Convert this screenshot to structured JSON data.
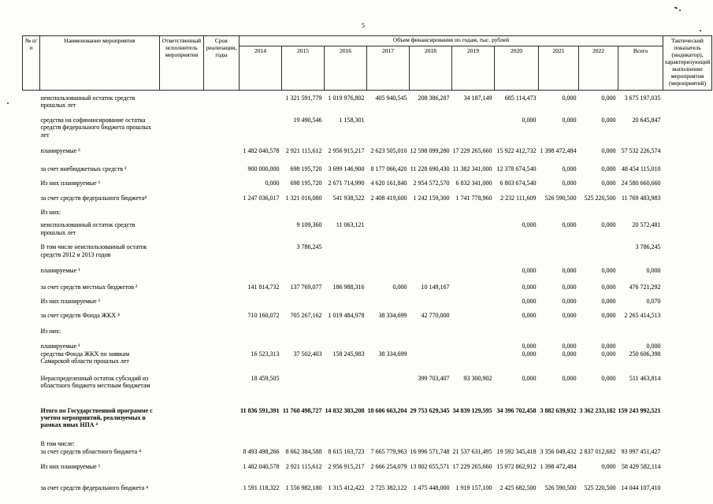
{
  "page": {
    "number": "5"
  },
  "table": {
    "header": {
      "col_num": "№ п/п",
      "col_name": "Наименование мероприятия",
      "col_executor": "Ответственный исполнитель мероприятия",
      "col_term": "Срок реализации, годы",
      "col_financing": "Объем финансирования по годам, тыс. рублей",
      "years": [
        "2014",
        "2015",
        "2016",
        "2017",
        "2018",
        "2019",
        "2020",
        "2021",
        "2022",
        "Всего"
      ],
      "col_indicator": "Тактический показатель (индикатор), характеризующий выполнение мероприятия (мероприятий)"
    },
    "rows": [
      {
        "label": "неиспользованный остаток средств прошлых лет",
        "bold": false,
        "values": [
          "",
          "1 321 591,779",
          "1 019 976,802",
          "405 940,545",
          "208 386,287",
          "34 187,149",
          "685 114,473",
          "0,000",
          "0,000",
          "3 675 197,035"
        ]
      },
      {
        "label": "средства на софинансирование остатка средств федерального бюджета прошлых лет",
        "bold": false,
        "values": [
          "",
          "19 490,546",
          "1 158,301",
          "",
          "",
          "",
          "0,000",
          "0,000",
          "0,000",
          "20 645,847"
        ]
      },
      {
        "label": "планируемые ³",
        "bold": false,
        "values": [
          "1 482 040,578",
          "2 921 115,612",
          "2 956 915,217",
          "2 623 505,010",
          "12 598 099,280",
          "17 229 265,660",
          "15 922 412,732",
          "1 398 472,484",
          "0,000",
          "57 532 226,574"
        ]
      },
      {
        "label": "за счет внебюджетных средств ²",
        "bold": false,
        "values": [
          "900 000,000",
          "698 195,720",
          "3 699 146,900",
          "8 177 066,420",
          "11 228 690,430",
          "11 382 341,000",
          "12 378 674,540",
          "0,000",
          "0,000",
          "48 454 115,010"
        ]
      },
      {
        "label": "Из них планируемые ¹",
        "bold": false,
        "values": [
          "0,000",
          "698 195,720",
          "2 671 714,990",
          "4 620 161,840",
          "2 954 572,570",
          "6 832 341,000",
          "6 803 674,540",
          "0,000",
          "0,000",
          "24 580 660,660"
        ]
      },
      {
        "label": "за счет средств федерального бюджета⁴",
        "bold": false,
        "values": [
          "1 247 036,017",
          "1 321 016,080",
          "541 938,522",
          "2 408 419,600",
          "1 242 159,300",
          "1 741 778,960",
          "2 232 111,609",
          "526 590,500",
          "525 220,500",
          "11 769 483,983"
        ]
      },
      {
        "label": "Из них:",
        "bold": false,
        "values": [
          "",
          "",
          "",
          "",
          "",
          "",
          "",
          "",
          "",
          ""
        ]
      },
      {
        "label": "неиспользованный остаток средств прошлых лет",
        "bold": false,
        "values": [
          "",
          "9 109,360",
          "11 063,121",
          "",
          "",
          "",
          "0,000",
          "0,000",
          "0,000",
          "20 572,481"
        ]
      },
      {
        "label": "В том числе неиспользованный остаток средств 2012 и 2013 годов",
        "bold": false,
        "values": [
          "",
          "3 786,245",
          "",
          "",
          "",
          "",
          "",
          "",
          "",
          "3 786,245"
        ]
      },
      {
        "label": "планируемые ¹",
        "bold": false,
        "values": [
          "",
          "",
          "",
          "",
          "",
          "",
          "0,000",
          "0,000",
          "0,000",
          "0,000"
        ]
      },
      {
        "label": "за счет средств местных бюджетов ²",
        "bold": false,
        "values": [
          "141 814,732",
          "137 769,077",
          "186 988,316",
          "0,000",
          "10 149,167",
          "",
          "0,000",
          "0,000",
          "0,000",
          "476 721,292"
        ]
      },
      {
        "label": "Из них планируемые ¹",
        "bold": false,
        "values": [
          "",
          "",
          "",
          "",
          "",
          "",
          "0,000",
          "0,000",
          "0,000",
          "0,070"
        ]
      },
      {
        "label": "за счет средств Фонда ЖКХ ⁴",
        "bold": false,
        "values": [
          "710 160,072",
          "705 267,162",
          "1 019 484,978",
          "38 334,699",
          "42 770,000",
          "",
          "0,000",
          "0,000",
          "0,000",
          "2 265 414,513"
        ]
      },
      {
        "label": "Из них:",
        "bold": false,
        "values": [
          "",
          "",
          "",
          "",
          "",
          "",
          "",
          "",
          "",
          ""
        ]
      },
      {
        "label": "планируемые ¹",
        "bold": false,
        "values": [
          "",
          "",
          "",
          "",
          "",
          "",
          "0,000",
          "0,000",
          "0,000",
          "0,000"
        ]
      },
      {
        "label": "средства Фонда ЖКХ по заявкам Самарской области прошлых лет",
        "bold": false,
        "values": [
          "16 523,313",
          "37 502,403",
          "158 245,983",
          "38 334,699",
          "",
          "",
          "0,000",
          "0,000",
          "0,000",
          "250 606,398"
        ]
      },
      {
        "label": "Нераспределенный остаток субсидий из областного бюджета местным бюджетам",
        "bold": false,
        "values": [
          "18 459,505",
          "",
          "",
          "",
          "399 703,407",
          "93 300,902",
          "0,000",
          "0,000",
          "0,000",
          "511 463,814"
        ]
      },
      {
        "label": "Итого по Государственной программе с учетом мероприятий, реализуемых в рамках иных НПА ⁴",
        "bold": true,
        "values": [
          "11 836 591,391",
          "11 760 498,727",
          "14 832 383,208",
          "18 606 663,204",
          "29 753 629,345",
          "34 839 129,595",
          "34 396 702,458",
          "3 882 639,932",
          "3 362 233,182",
          "159 243 992,521"
        ]
      },
      {
        "label": "В том числе:",
        "bold": false,
        "values": [
          "",
          "",
          "",
          "",
          "",
          "",
          "",
          "",
          "",
          ""
        ]
      },
      {
        "label": "за счет средств областного бюджета ⁴",
        "bold": false,
        "values": [
          "8 493 498,266",
          "8 662 384,588",
          "8 615 163,723",
          "7 665 779,963",
          "16 996 571,748",
          "21 537 631,495",
          "19 592 345,418",
          "3 356 049,432",
          "2 837 012,682",
          "93 997 451,427"
        ]
      },
      {
        "label": "Из них планируемые ¹",
        "bold": false,
        "values": [
          "1 482 040,578",
          "2 921 115,612",
          "2 956 915,217",
          "2 666 254,079",
          "13 802 655,571",
          "17 229 265,660",
          "15 972 862,912",
          "1 398 472,484",
          "0,000",
          "58 429 582,114"
        ]
      },
      {
        "label": "за счет средств федерального бюджета ⁴",
        "bold": false,
        "values": [
          "1 591 118,322",
          "1 556 982,180",
          "1 315 412,422",
          "2 725 382,122",
          "1 475 448,000",
          "1 919 157,100",
          "2 425 682,500",
          "526 590,500",
          "525 220,500",
          "14 044 107,410"
        ]
      }
    ]
  }
}
